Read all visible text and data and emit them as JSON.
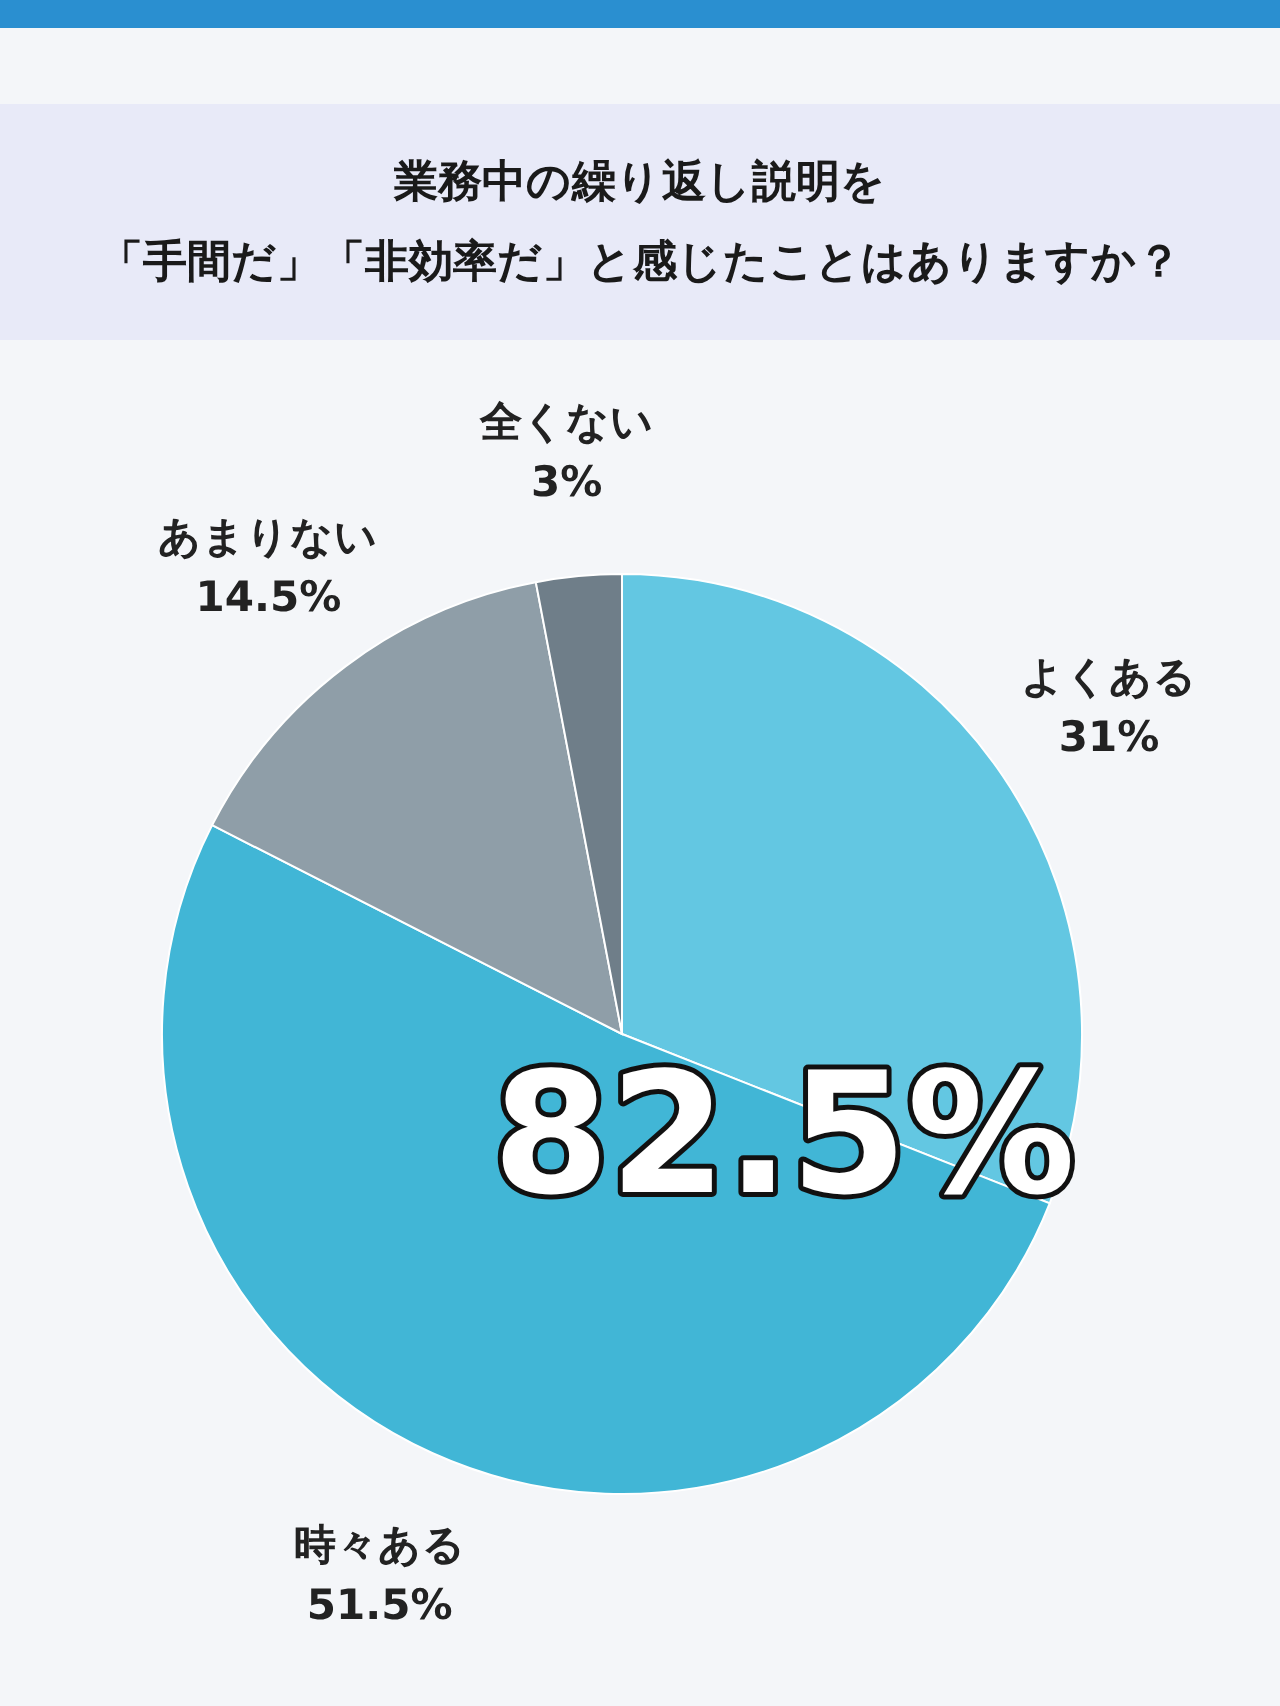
{
  "chart_data": {
    "type": "pie",
    "title": "業務中の繰り返し説明を",
    "subtitle": "「手間だ」「非効率だ」と感じたことはありますか？",
    "categories": [
      "よくある",
      "時々ある",
      "あまりない",
      "全くない"
    ],
    "values": [
      31,
      51.5,
      14.5,
      3
    ],
    "value_labels": [
      "31%",
      "51.5%",
      "14.5%",
      "3%"
    ],
    "colors": [
      "#63c7e2",
      "#41b6d6",
      "#8f9ea8",
      "#6f7e89"
    ],
    "annotations": [
      "82.5%"
    ]
  }
}
